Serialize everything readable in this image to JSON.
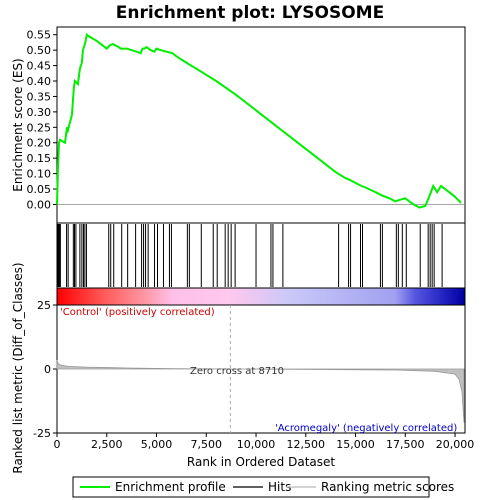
{
  "chart_data": [
    {
      "type": "line",
      "title": "Enrichment plot: LYSOSOME",
      "ylabel": "Enrichment score (ES)",
      "xlim": [
        0,
        20500
      ],
      "ylim": [
        -0.06,
        0.575
      ],
      "yticks": [
        "0.00",
        "0.05",
        "0.10",
        "0.15",
        "0.20",
        "0.25",
        "0.30",
        "0.35",
        "0.40",
        "0.45",
        "0.50",
        "0.55"
      ],
      "ytick_values": [
        0,
        0.05,
        0.1,
        0.15,
        0.2,
        0.25,
        0.3,
        0.35,
        0.4,
        0.45,
        0.5,
        0.55
      ],
      "color": "#00ee00",
      "series": [
        {
          "name": "Enrichment profile",
          "x": [
            0,
            50,
            100,
            150,
            400,
            500,
            550,
            750,
            850,
            900,
            1050,
            1150,
            1250,
            1300,
            1400,
            1500,
            1600,
            2000,
            2500,
            2650,
            2800,
            3100,
            3200,
            3500,
            4000,
            4200,
            4300,
            4400,
            4500,
            4700,
            4900,
            5000,
            5200,
            5500,
            5800,
            6000,
            6600,
            7000,
            8000,
            9000,
            10000,
            11000,
            12000,
            13000,
            14000,
            14500,
            14700,
            15000,
            15300,
            15500,
            16000,
            16300,
            16700,
            17000,
            17200,
            17500,
            17800,
            18200,
            18500,
            18700,
            18900,
            19100,
            19300,
            19600,
            20000,
            20300
          ],
          "y": [
            0.0,
            0.12,
            0.2,
            0.21,
            0.2,
            0.25,
            0.24,
            0.29,
            0.38,
            0.4,
            0.39,
            0.44,
            0.46,
            0.5,
            0.52,
            0.55,
            0.545,
            0.53,
            0.505,
            0.515,
            0.52,
            0.51,
            0.505,
            0.505,
            0.495,
            0.49,
            0.505,
            0.505,
            0.51,
            0.5,
            0.495,
            0.505,
            0.5,
            0.495,
            0.49,
            0.48,
            0.455,
            0.44,
            0.4,
            0.355,
            0.305,
            0.255,
            0.205,
            0.155,
            0.105,
            0.085,
            0.08,
            0.07,
            0.06,
            0.055,
            0.04,
            0.03,
            0.02,
            0.01,
            0.015,
            0.02,
            0.005,
            -0.01,
            -0.005,
            0.025,
            0.06,
            0.04,
            0.06,
            0.045,
            0.025,
            0.005
          ]
        }
      ]
    },
    {
      "type": "scatter",
      "series": [
        {
          "name": "Hits",
          "x": [
            30,
            60,
            90,
            130,
            170,
            480,
            560,
            820,
            880,
            950,
            1150,
            1250,
            1330,
            1400,
            1480,
            2600,
            2700,
            2850,
            3250,
            3550,
            3950,
            4250,
            4350,
            4450,
            4580,
            4900,
            5050,
            5350,
            5650,
            5750,
            6550,
            6650,
            7250,
            7850,
            8050,
            8450,
            8600,
            8750,
            8950,
            10000,
            10750,
            10850,
            11350,
            14150,
            14650,
            14750,
            15250,
            15350,
            16250,
            16350,
            17050,
            17150,
            17350,
            17550,
            18250,
            18650,
            18750,
            18850,
            18950,
            19350
          ]
        }
      ]
    },
    {
      "type": "heatmap",
      "series": [
        {
          "name": "Ranking gradient",
          "x": [
            0,
            2500,
            4500,
            5800,
            8700,
            11800,
            17000,
            18000,
            19500,
            20500
          ],
          "colors": [
            "#ff0000",
            "#ff5f5f",
            "#ff9aa8",
            "#ffc0e8",
            "#ffc8ee",
            "#c8c8f8",
            "#a0a0f0",
            "#5555e0",
            "#2020c0",
            "#0000a0"
          ]
        }
      ]
    },
    {
      "type": "area",
      "ylabel": "Ranked list metric (Diff_of_Classes)",
      "xlabel": "Rank in Ordered Dataset",
      "xlim": [
        0,
        20500
      ],
      "ylim": [
        -25,
        25
      ],
      "yticks": [
        "-25",
        "0",
        "25"
      ],
      "ytick_values": [
        -25,
        0,
        25
      ],
      "xticks": [
        "0",
        "2,500",
        "5,000",
        "7,500",
        "10,000",
        "12,500",
        "15,000",
        "17,500",
        "20,000"
      ],
      "xtick_values": [
        0,
        2500,
        5000,
        7500,
        10000,
        12500,
        15000,
        17500,
        20000
      ],
      "annotations": {
        "positive": "'Control' (positively correlated)",
        "negative": "'Acromegaly' (negatively correlated)",
        "zero_cross": "Zero cross at 8710"
      },
      "zero_cross_x": 8710,
      "series": [
        {
          "name": "Ranking metric scores",
          "x": [
            0,
            50,
            200,
            600,
            1500,
            2800,
            4000,
            6000,
            8710,
            12000,
            17000,
            19000,
            20000,
            20200,
            20350,
            20450
          ],
          "y": [
            3.5,
            2.2,
            1.5,
            1.0,
            0.7,
            0.5,
            0.3,
            0.15,
            0,
            -0.15,
            -0.4,
            -0.9,
            -2.0,
            -4.0,
            -9.0,
            -21.0
          ]
        }
      ]
    }
  ],
  "legend": {
    "items": [
      {
        "label": "Enrichment profile",
        "color": "#00ee00"
      },
      {
        "label": "Hits",
        "color": "#000000"
      },
      {
        "label": "Ranking metric scores",
        "color": "#bbbbbb"
      }
    ]
  }
}
